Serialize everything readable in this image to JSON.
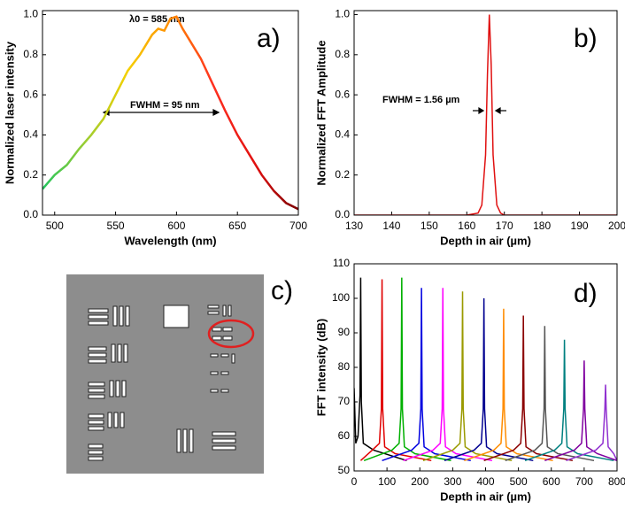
{
  "chart_data": [
    {
      "type": "line",
      "panel_label": "a)",
      "xlabel": "Wavelength (nm)",
      "ylabel": "Normalized laser intensity",
      "annotations": [
        "λ0 = 585 nm",
        "FWHM = 95 nm"
      ],
      "xlim": [
        490,
        700
      ],
      "xticks": [
        500,
        550,
        600,
        650,
        700
      ],
      "ylim": [
        0,
        1.02
      ],
      "yticks": [
        {
          "value": 0,
          "label": "0.0"
        },
        0.2,
        0.4,
        0.6,
        0.8,
        {
          "value": 1,
          "label": "1.0"
        }
      ],
      "series": [
        {
          "color_stops": [
            "#22c55e",
            "#9acd32",
            "#f5d000",
            "#ff8c00",
            "#ff3020",
            "#e01010",
            "#7a0000"
          ],
          "x": [
            490,
            500,
            510,
            520,
            530,
            540,
            550,
            560,
            570,
            580,
            585,
            590,
            595,
            600,
            605,
            610,
            620,
            630,
            640,
            650,
            660,
            670,
            680,
            690,
            700
          ],
          "values": [
            0.13,
            0.2,
            0.25,
            0.33,
            0.4,
            0.48,
            0.6,
            0.72,
            0.8,
            0.9,
            0.93,
            0.92,
            0.98,
            0.99,
            0.93,
            0.88,
            0.78,
            0.65,
            0.52,
            0.4,
            0.3,
            0.2,
            0.12,
            0.06,
            0.03
          ]
        }
      ]
    },
    {
      "type": "line",
      "panel_label": "b)",
      "xlabel": "Depth in air (µm)",
      "ylabel": "Normalized FFT Amplitude",
      "annotations": [
        "FWHM = 1.56 µm"
      ],
      "xlim": [
        130,
        200
      ],
      "xticks": [
        130,
        140,
        150,
        160,
        170,
        180,
        190,
        200
      ],
      "ylim": [
        0,
        1.02
      ],
      "yticks": [
        {
          "value": 0,
          "label": "0.0"
        },
        0.2,
        0.4,
        0.6,
        0.8,
        {
          "value": 1,
          "label": "1.0"
        }
      ],
      "series": [
        {
          "color": "#e01010",
          "x": [
            130,
            160,
            163,
            164,
            165,
            165.5,
            166,
            166.5,
            167,
            168,
            169,
            170,
            200
          ],
          "values": [
            0,
            0,
            0.01,
            0.05,
            0.3,
            0.7,
            1.0,
            0.75,
            0.3,
            0.05,
            0.01,
            0,
            0
          ]
        }
      ]
    },
    {
      "type": "image",
      "panel_label": "c)"
    },
    {
      "type": "line",
      "panel_label": "d)",
      "xlabel": "Depth in air (µm)",
      "ylabel": "FFT intensity (dB)",
      "xlim": [
        0,
        800
      ],
      "xticks": [
        0,
        100,
        200,
        300,
        400,
        500,
        600,
        700,
        800
      ],
      "ylim": [
        50,
        110
      ],
      "yticks": [
        50,
        60,
        70,
        80,
        90,
        100,
        110
      ],
      "series": [
        {
          "color": "#000000",
          "x": [
            0,
            5,
            12,
            18,
            20,
            22,
            28,
            60,
            160
          ],
          "values": [
            74,
            58,
            60,
            72,
            106,
            70,
            58,
            56,
            53
          ]
        },
        {
          "color": "#e00000",
          "x": [
            20,
            55,
            77,
            83,
            85,
            87,
            93,
            125,
            235
          ],
          "values": [
            53,
            56,
            58,
            68,
            105.5,
            68,
            57,
            55,
            53
          ]
        },
        {
          "color": "#00b000",
          "x": [
            30,
            115,
            137,
            143,
            145,
            147,
            153,
            185,
            295
          ],
          "values": [
            53,
            56,
            58,
            68,
            106,
            68,
            57,
            55,
            53
          ]
        },
        {
          "color": "#0000e0",
          "x": [
            85,
            175,
            197,
            203,
            205,
            207,
            213,
            245,
            355
          ],
          "values": [
            53,
            56,
            58,
            68,
            103,
            68,
            57,
            55,
            53
          ]
        },
        {
          "color": "#ff00ff",
          "x": [
            150,
            240,
            262,
            268,
            270,
            272,
            278,
            310,
            420
          ],
          "values": [
            53,
            56,
            58,
            68,
            103,
            68,
            57,
            55,
            53
          ]
        },
        {
          "color": "#9a9a00",
          "x": [
            210,
            300,
            322,
            328,
            330,
            332,
            338,
            370,
            480
          ],
          "values": [
            53,
            56,
            58,
            68,
            102,
            68,
            57,
            55,
            53
          ]
        },
        {
          "color": "#000090",
          "x": [
            275,
            365,
            387,
            393,
            395,
            397,
            403,
            435,
            545
          ],
          "values": [
            53,
            56,
            58,
            68,
            100,
            68,
            57,
            55,
            53
          ]
        },
        {
          "color": "#ff8c00",
          "x": [
            335,
            425,
            447,
            453,
            455,
            457,
            463,
            495,
            605
          ],
          "values": [
            53,
            56,
            58,
            68,
            97,
            68,
            57,
            55,
            53
          ]
        },
        {
          "color": "#8b0000",
          "x": [
            395,
            485,
            507,
            513,
            515,
            517,
            523,
            555,
            665
          ],
          "values": [
            53,
            56,
            58,
            68,
            95,
            68,
            57,
            55,
            53
          ]
        },
        {
          "color": "#555555",
          "x": [
            460,
            550,
            572,
            578,
            580,
            582,
            588,
            620,
            730
          ],
          "values": [
            53,
            56,
            58,
            68,
            92,
            68,
            57,
            55,
            53
          ]
        },
        {
          "color": "#008080",
          "x": [
            520,
            610,
            632,
            638,
            640,
            642,
            648,
            680,
            790
          ],
          "values": [
            53,
            56,
            58,
            68,
            88,
            68,
            57,
            55,
            53
          ]
        },
        {
          "color": "#8000a0",
          "x": [
            580,
            670,
            692,
            698,
            700,
            702,
            708,
            740,
            800
          ],
          "values": [
            53,
            56,
            58,
            68,
            82,
            68,
            57,
            55,
            53
          ]
        },
        {
          "color": "#9030d0",
          "x": [
            645,
            735,
            757,
            763,
            765,
            767,
            773,
            790,
            800
          ],
          "values": [
            53,
            56,
            58,
            68,
            75,
            68,
            57,
            55,
            53
          ]
        }
      ]
    }
  ]
}
